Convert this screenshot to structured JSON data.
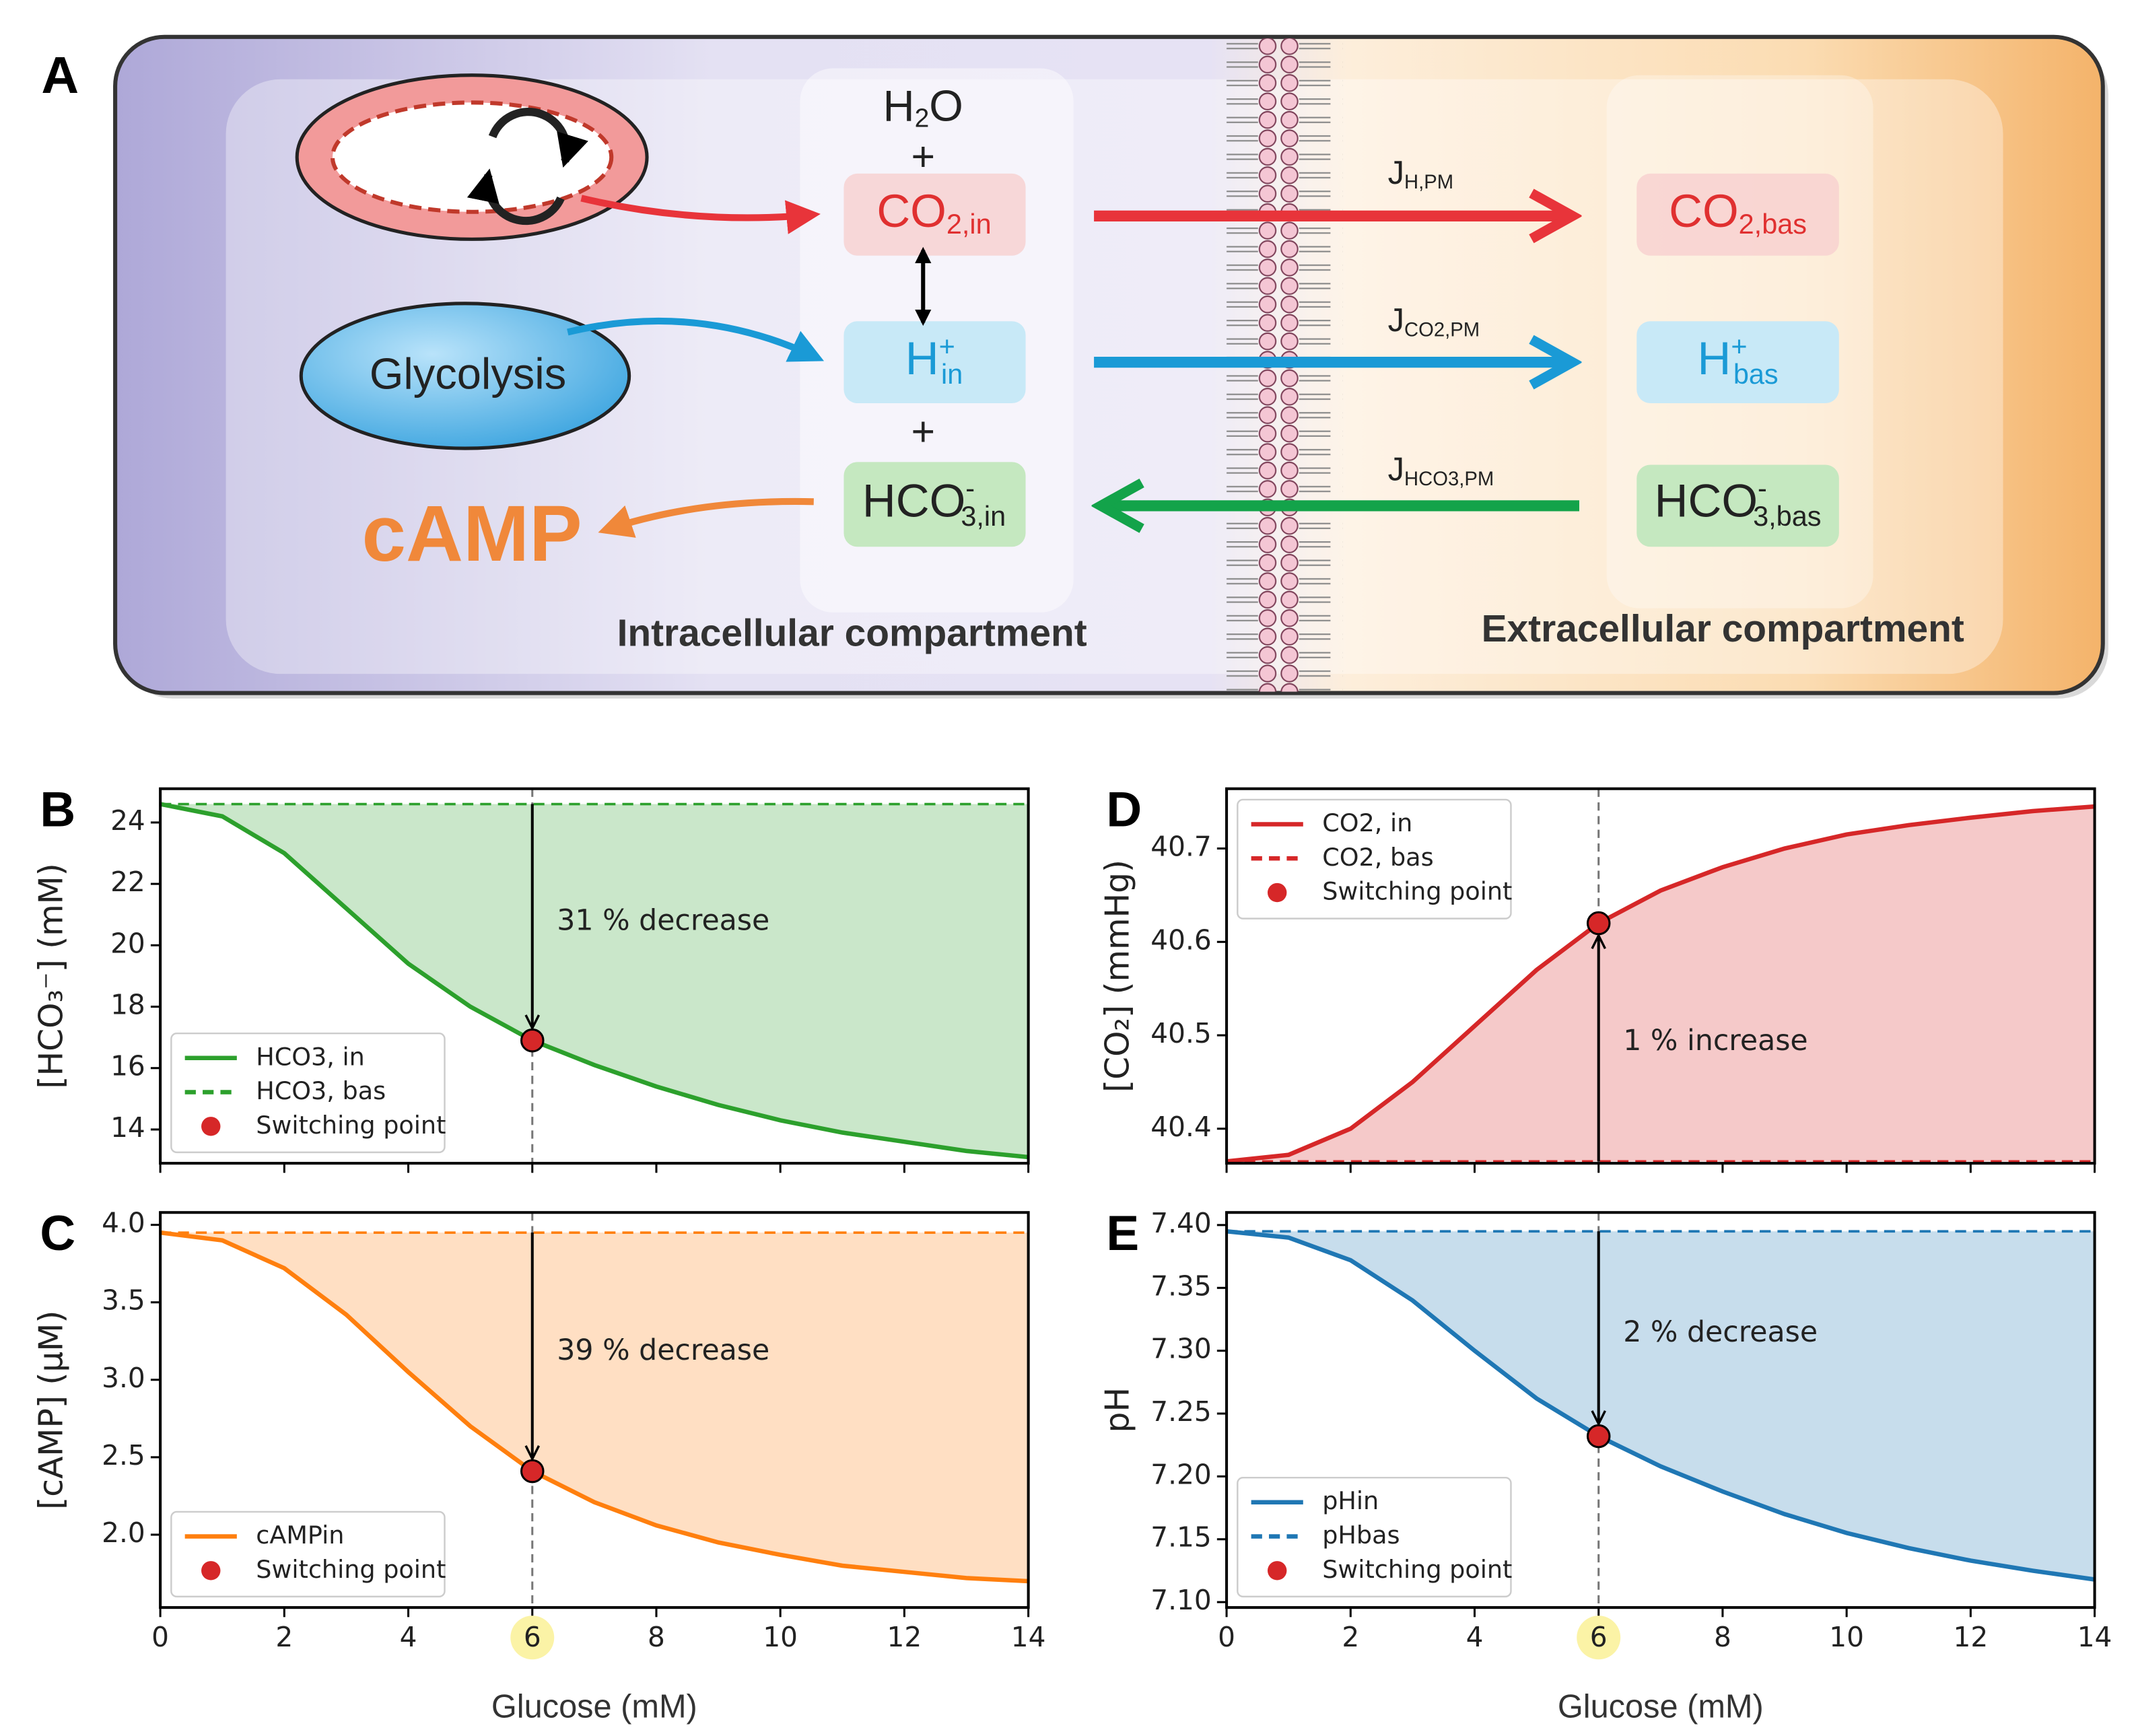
{
  "diagram": {
    "panel": "A",
    "water": {
      "main": "H",
      "sub": "2",
      "end": "O"
    },
    "plus": [
      "+",
      "+"
    ],
    "glycolysis": "Glycolysis",
    "camp": "cAMP",
    "intracellular_species": [
      {
        "main": "CO",
        "sub": "2,in"
      },
      {
        "main": "H",
        "sup": "+",
        "sub": "in"
      },
      {
        "main": "HCO",
        "sup": "-",
        "sub": "3,in"
      }
    ],
    "extracellular_species": [
      {
        "main": "CO",
        "sub": "2,bas"
      },
      {
        "main": "H",
        "sup": "+",
        "sub": "bas"
      },
      {
        "main": "HCO",
        "sup": "-",
        "sub": "3,bas"
      }
    ],
    "fluxes": [
      {
        "main": "J",
        "sub": "H,PM"
      },
      {
        "main": "J",
        "sub": "CO2,PM"
      },
      {
        "main": "J",
        "sub": "HCO3,PM"
      }
    ],
    "compartments": [
      "Intracellular compartment",
      "Extracellular compartment"
    ]
  },
  "chart_data": [
    {
      "type": "line",
      "panel": "B",
      "ylabel": "[HCO₃⁻] (mM)",
      "x": [
        0,
        1,
        2,
        3,
        4,
        5,
        6,
        7,
        8,
        9,
        10,
        11,
        12,
        13,
        14
      ],
      "series": [
        {
          "name": "HCO3, in",
          "color": "#2ca02c",
          "style": "solid",
          "values": [
            24.6,
            24.2,
            23.0,
            21.2,
            19.4,
            18.0,
            16.9,
            16.1,
            15.4,
            14.8,
            14.3,
            13.9,
            13.6,
            13.3,
            13.1
          ]
        },
        {
          "name": "HCO3, bas",
          "color": "#2ca02c",
          "style": "dashed",
          "values": [
            24.6,
            24.6,
            24.6,
            24.6,
            24.6,
            24.6,
            24.6,
            24.6,
            24.6,
            24.6,
            24.6,
            24.6,
            24.6,
            24.6,
            24.6
          ]
        }
      ],
      "marker": {
        "name": "Switching point",
        "x": 6,
        "y": 16.9,
        "color": "#d62728"
      },
      "annotation": "31 % decrease",
      "xlim": [
        0,
        14
      ],
      "xticks": [
        0,
        2,
        4,
        6,
        8,
        10,
        12,
        14
      ],
      "show_xtick_labels": false,
      "ylim": [
        12.9,
        25.1
      ],
      "yticks": [
        14,
        16,
        18,
        20,
        22,
        24
      ],
      "legend": "lower left"
    },
    {
      "type": "line",
      "panel": "C",
      "ylabel": "[cAMP] (μM)",
      "xlabel": "Glucose (mM)",
      "x": [
        0,
        1,
        2,
        3,
        4,
        5,
        6,
        7,
        8,
        9,
        10,
        11,
        12,
        13,
        14
      ],
      "series": [
        {
          "name": "cAMPin",
          "color": "#ff7f0e",
          "style": "solid",
          "values": [
            3.95,
            3.9,
            3.72,
            3.42,
            3.05,
            2.7,
            2.41,
            2.21,
            2.06,
            1.95,
            1.87,
            1.8,
            1.76,
            1.72,
            1.7
          ]
        },
        {
          "name": "cAMPbas",
          "color": "#ff7f0e",
          "style": "dashed",
          "legend": false,
          "values": [
            3.95,
            3.95,
            3.95,
            3.95,
            3.95,
            3.95,
            3.95,
            3.95,
            3.95,
            3.95,
            3.95,
            3.95,
            3.95,
            3.95,
            3.95
          ]
        }
      ],
      "marker": {
        "name": "Switching point",
        "x": 6,
        "y": 2.41,
        "color": "#d62728"
      },
      "annotation": "39 % decrease",
      "xlim": [
        0,
        14
      ],
      "xticks": [
        0,
        2,
        4,
        6,
        8,
        10,
        12,
        14
      ],
      "show_xtick_labels": true,
      "highlight_xtick": 6,
      "ylim": [
        1.53,
        4.08
      ],
      "yticks": [
        {
          "value": 2,
          "label": "2.0"
        },
        2.5,
        {
          "value": 3,
          "label": "3.0"
        },
        3.5,
        {
          "value": 4,
          "label": "4.0"
        }
      ],
      "legend": "lower left"
    },
    {
      "type": "line",
      "panel": "D",
      "ylabel": "[CO₂] (mmHg)",
      "x": [
        0,
        1,
        2,
        3,
        4,
        5,
        6,
        7,
        8,
        9,
        10,
        11,
        12,
        13,
        14
      ],
      "series": [
        {
          "name": "CO2, in",
          "color": "#d62728",
          "style": "solid",
          "values": [
            40.365,
            40.372,
            40.4,
            40.45,
            40.51,
            40.57,
            40.62,
            40.655,
            40.68,
            40.7,
            40.715,
            40.725,
            40.733,
            40.74,
            40.745
          ]
        },
        {
          "name": "CO2, bas",
          "color": "#d62728",
          "style": "dashed",
          "values": [
            40.365,
            40.365,
            40.365,
            40.365,
            40.365,
            40.365,
            40.365,
            40.365,
            40.365,
            40.365,
            40.365,
            40.365,
            40.365,
            40.365,
            40.365
          ]
        }
      ],
      "marker": {
        "name": "Switching point",
        "x": 6,
        "y": 40.62,
        "color": "#d62728"
      },
      "annotation": "1 % increase",
      "xlim": [
        0,
        14
      ],
      "xticks": [
        0,
        2,
        4,
        6,
        8,
        10,
        12,
        14
      ],
      "show_xtick_labels": false,
      "ylim": [
        40.363,
        40.764
      ],
      "yticks": [
        40.4,
        40.5,
        40.6,
        40.7
      ],
      "legend": "upper left"
    },
    {
      "type": "line",
      "panel": "E",
      "ylabel": "pH",
      "xlabel": "Glucose (mM)",
      "x": [
        0,
        1,
        2,
        3,
        4,
        5,
        6,
        7,
        8,
        9,
        10,
        11,
        12,
        13,
        14
      ],
      "series": [
        {
          "name": "pHin",
          "color": "#1f77b4",
          "style": "solid",
          "values": [
            7.395,
            7.39,
            7.372,
            7.34,
            7.3,
            7.262,
            7.232,
            7.208,
            7.188,
            7.17,
            7.155,
            7.143,
            7.133,
            7.125,
            7.118
          ]
        },
        {
          "name": "pHbas",
          "color": "#1f77b4",
          "style": "dashed",
          "values": [
            7.395,
            7.395,
            7.395,
            7.395,
            7.395,
            7.395,
            7.395,
            7.395,
            7.395,
            7.395,
            7.395,
            7.395,
            7.395,
            7.395,
            7.395
          ]
        }
      ],
      "marker": {
        "name": "Switching point",
        "x": 6,
        "y": 7.232,
        "color": "#d62728"
      },
      "annotation": "2 % decrease",
      "xlim": [
        0,
        14
      ],
      "xticks": [
        0,
        2,
        4,
        6,
        8,
        10,
        12,
        14
      ],
      "show_xtick_labels": true,
      "highlight_xtick": 6,
      "ylim": [
        7.0957,
        7.41
      ],
      "yticks": [
        {
          "value": 7.1,
          "label": "7.10"
        },
        7.15,
        {
          "value": 7.2,
          "label": "7.20"
        },
        7.25,
        {
          "value": 7.3,
          "label": "7.30"
        },
        7.35,
        {
          "value": 7.4,
          "label": "7.40"
        }
      ],
      "legend": "lower left"
    }
  ]
}
